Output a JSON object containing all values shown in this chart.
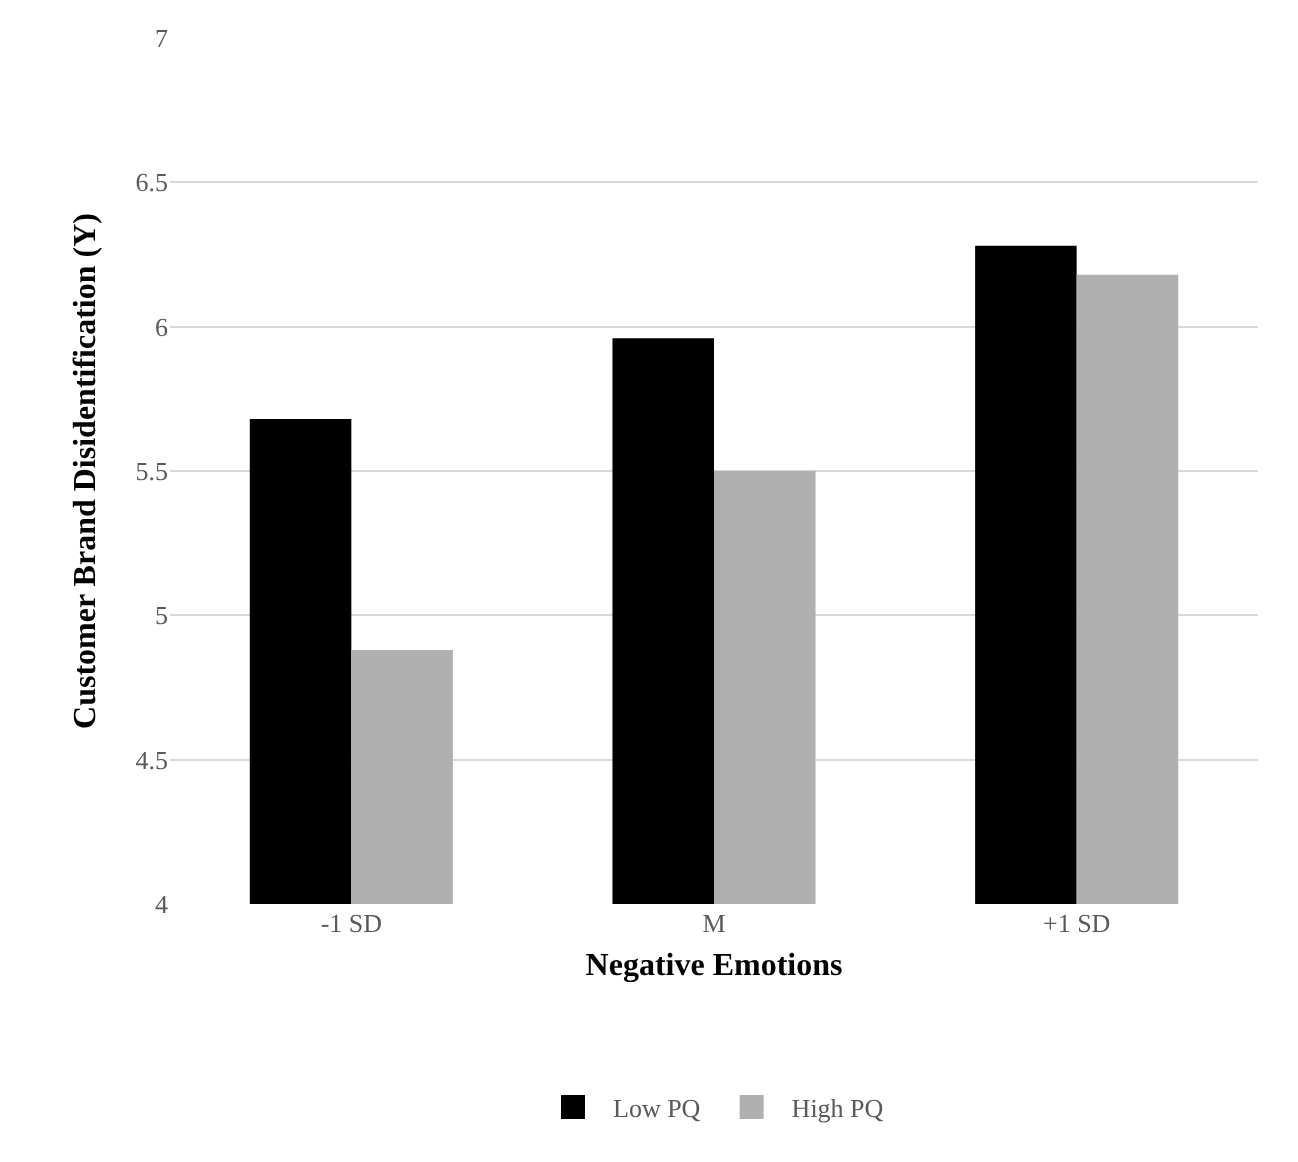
{
  "chart_data": {
    "type": "bar",
    "xlabel": "Negative Emotions",
    "ylabel": "Customer Brand Disidentification (Y)",
    "categories": [
      "-1 SD",
      "M",
      "+1 SD"
    ],
    "series": [
      {
        "name": "Low PQ",
        "color": "#000000",
        "values": [
          5.68,
          5.96,
          6.28
        ]
      },
      {
        "name": "High PQ",
        "color": "#b0b0b0",
        "values": [
          4.88,
          5.5,
          6.18
        ]
      }
    ],
    "ylim": [
      4,
      7
    ],
    "yticks": [
      4,
      4.5,
      5,
      5.5,
      6,
      6.5,
      7
    ],
    "grid": "y",
    "legend": "bottom"
  }
}
